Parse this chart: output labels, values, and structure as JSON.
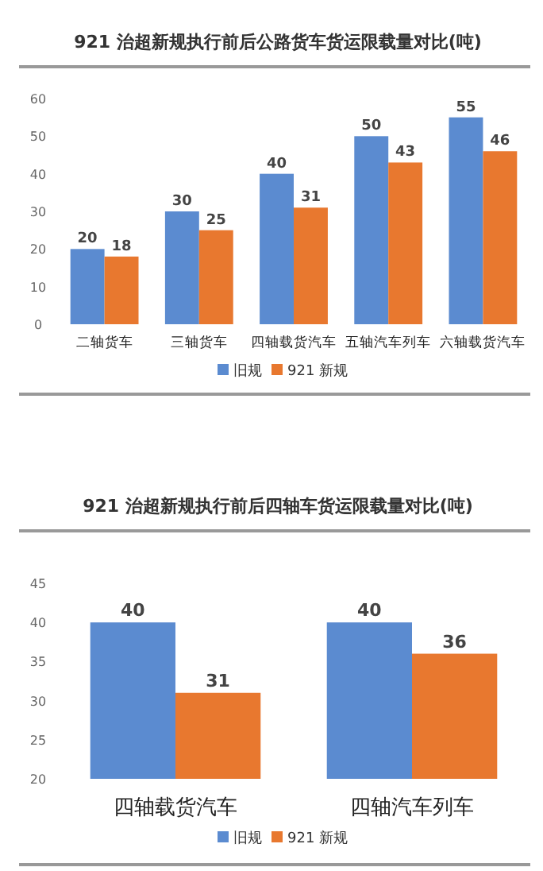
{
  "chart_data": [
    {
      "type": "bar",
      "title": "921 治超新规执行前后公路货车货运限载量对比(吨)",
      "categories": [
        "二轴货车",
        "三轴货车",
        "四轴载货汽车",
        "五轴汽车列车",
        "六轴载货汽车"
      ],
      "series": [
        {
          "name": "旧规",
          "color": "#5b8bd0",
          "values": [
            20,
            30,
            40,
            50,
            55
          ]
        },
        {
          "name": "921 新规",
          "color": "#e8782f",
          "values": [
            18,
            25,
            31,
            43,
            46
          ]
        }
      ],
      "ylim": [
        0,
        60
      ],
      "yticks": [
        0,
        10,
        20,
        30,
        40,
        50,
        60
      ],
      "data_labels": true,
      "legend": "bottom",
      "grid": false
    },
    {
      "type": "bar",
      "title": "921 治超新规执行前后四轴车货运限载量对比(吨)",
      "categories": [
        "四轴载货汽车",
        "四轴汽车列车"
      ],
      "series": [
        {
          "name": "旧规",
          "color": "#5b8bd0",
          "values": [
            40,
            40
          ]
        },
        {
          "name": "921 新规",
          "color": "#e8782f",
          "values": [
            31,
            36
          ]
        }
      ],
      "ylim": [
        20,
        45
      ],
      "yticks": [
        20,
        25,
        30,
        35,
        40,
        45
      ],
      "data_labels": true,
      "legend": "bottom",
      "grid": false
    }
  ]
}
